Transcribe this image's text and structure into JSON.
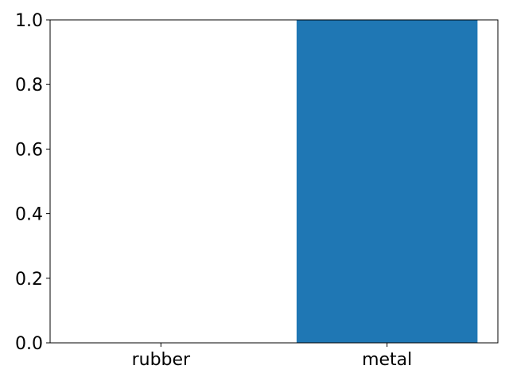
{
  "chart_data": {
    "type": "bar",
    "categories": [
      "rubber",
      "metal"
    ],
    "values": [
      0.0,
      1.0
    ],
    "title": "",
    "xlabel": "",
    "ylabel": "",
    "ylim": [
      0.0,
      1.0
    ],
    "yticks": [
      "0.0",
      "0.2",
      "0.4",
      "0.6",
      "0.8",
      "1.0"
    ],
    "grid": false,
    "legend": "none",
    "bar_color": "#1f77b4"
  }
}
